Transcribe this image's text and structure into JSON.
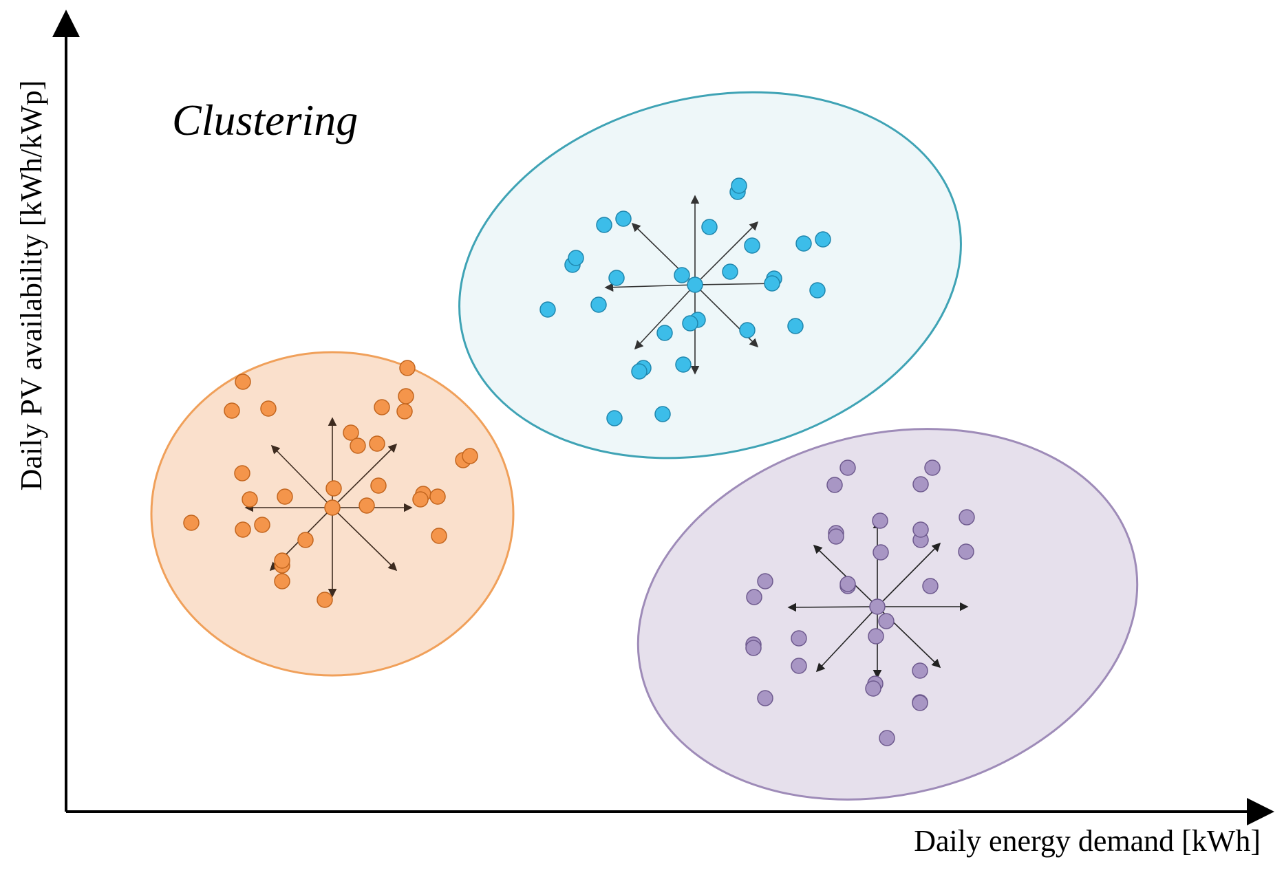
{
  "title": "Clustering",
  "x_axis_label": "Daily energy demand [kWh]",
  "y_axis_label": "Daily PV availability [kWh/kWp]",
  "clusters": [
    {
      "id": "orange",
      "fill": "#fae0cc",
      "stroke": "#f0a05a",
      "point_fill": "#f4954b",
      "point_stroke": "#c2651e",
      "arrow_color": "#3d2b1f",
      "points": [
        [
          278,
          760
        ],
        [
          353,
          555
        ],
        [
          337,
          597
        ],
        [
          363,
          726
        ],
        [
          353,
          770
        ],
        [
          381,
          763
        ],
        [
          390,
          594
        ],
        [
          352,
          688
        ],
        [
          414,
          722
        ],
        [
          410,
          822
        ],
        [
          444,
          785
        ],
        [
          510,
          629
        ],
        [
          520,
          648
        ],
        [
          548,
          645
        ],
        [
          592,
          535
        ],
        [
          588,
          598
        ],
        [
          550,
          706
        ],
        [
          485,
          710
        ],
        [
          533,
          735
        ],
        [
          472,
          872
        ],
        [
          410,
          845
        ],
        [
          410,
          815
        ],
        [
          555,
          592
        ],
        [
          590,
          576
        ],
        [
          673,
          669
        ],
        [
          638,
          779
        ],
        [
          615,
          718
        ],
        [
          611,
          726
        ],
        [
          683,
          663
        ],
        [
          636,
          722
        ]
      ]
    },
    {
      "id": "blue",
      "fill": "#eef7f9",
      "stroke": "#3fa3b5",
      "point_fill": "#3cbde9",
      "point_stroke": "#1f86ad",
      "arrow_color": "#333333",
      "points": [
        [
          796,
          450
        ],
        [
          832,
          385
        ],
        [
          837,
          375
        ],
        [
          878,
          327
        ],
        [
          906,
          318
        ],
        [
          896,
          404
        ],
        [
          870,
          443
        ],
        [
          991,
          400
        ],
        [
          993,
          530
        ],
        [
          1031,
          330
        ],
        [
          1072,
          279
        ],
        [
          1074,
          270
        ],
        [
          1014,
          465
        ],
        [
          1003,
          470
        ],
        [
          966,
          484
        ],
        [
          935,
          535
        ],
        [
          929,
          540
        ],
        [
          893,
          608
        ],
        [
          963,
          602
        ],
        [
          1061,
          395
        ],
        [
          1093,
          357
        ],
        [
          1125,
          405
        ],
        [
          1122,
          412
        ],
        [
          1086,
          480
        ],
        [
          1156,
          474
        ],
        [
          1188,
          422
        ],
        [
          1168,
          354
        ],
        [
          1196,
          348
        ]
      ]
    },
    {
      "id": "purple",
      "fill": "#e6e0ec",
      "stroke": "#9e8bb8",
      "point_fill": "#a896c4",
      "point_stroke": "#6e5a8e",
      "arrow_color": "#222222",
      "points": [
        [
          1213,
          705
        ],
        [
          1232,
          680
        ],
        [
          1215,
          775
        ],
        [
          1215,
          780
        ],
        [
          1096,
          868
        ],
        [
          1112,
          845
        ],
        [
          1095,
          937
        ],
        [
          1095,
          942
        ],
        [
          1161,
          928
        ],
        [
          1161,
          968
        ],
        [
          1112,
          1015
        ],
        [
          1232,
          852
        ],
        [
          1232,
          849
        ],
        [
          1279,
          757
        ],
        [
          1280,
          803
        ],
        [
          1273,
          925
        ],
        [
          1272,
          994
        ],
        [
          1269,
          1001
        ],
        [
          1288,
          903
        ],
        [
          1289,
          1073
        ],
        [
          1337,
          1021
        ],
        [
          1337,
          1022
        ],
        [
          1337,
          975
        ],
        [
          1352,
          852
        ],
        [
          1338,
          785
        ],
        [
          1338,
          770
        ],
        [
          1355,
          680
        ],
        [
          1338,
          704
        ],
        [
          1405,
          752
        ],
        [
          1404,
          802
        ]
      ]
    }
  ]
}
